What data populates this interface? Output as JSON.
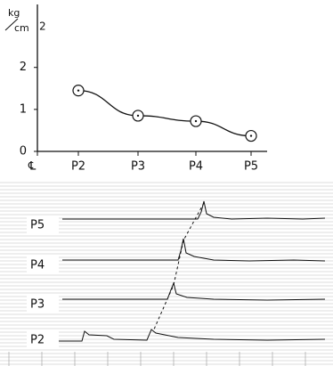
{
  "chart_data": {
    "type": "line",
    "y_unit": [
      "kg",
      "cm",
      "2"
    ],
    "categories": [
      "℄",
      "P2",
      "P3",
      "P4",
      "P5"
    ],
    "values": [
      null,
      1.45,
      0.85,
      0.72,
      0.37
    ],
    "color": "#111111",
    "ylim": [
      0,
      3.5
    ],
    "yticks": [
      0,
      1,
      2
    ],
    "grid": false
  },
  "trace_labels": [
    "P5",
    "P4",
    "P3",
    "P2"
  ]
}
